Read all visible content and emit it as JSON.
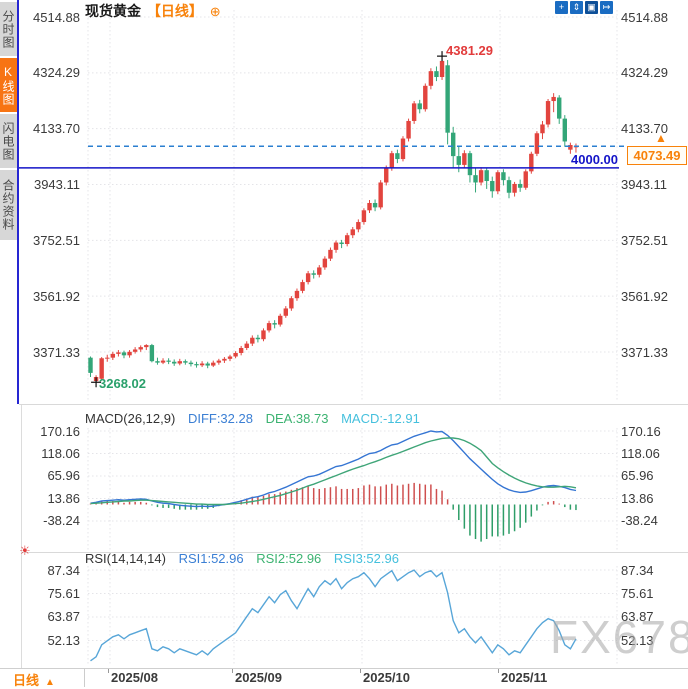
{
  "header": {
    "symbol": "现货黄金",
    "period_tag": "【日线】",
    "add_indicator_glyph": "⊕"
  },
  "sidebar": {
    "items": [
      {
        "label": "分时图",
        "active": false
      },
      {
        "label": "K线图",
        "active": true
      },
      {
        "label": "闪电图",
        "active": false
      },
      {
        "label": "合约资料",
        "active": false
      }
    ]
  },
  "toolbar": {
    "icons": [
      {
        "name": "crosshair-pan-icon",
        "glyph": "+",
        "active": false
      },
      {
        "name": "axis-zoom-icon",
        "glyph": "⇕",
        "active": false
      },
      {
        "name": "axis-fill-icon",
        "glyph": "▣",
        "active": true
      },
      {
        "name": "collapse-right-icon",
        "glyph": "↦",
        "active": false
      }
    ]
  },
  "main_chart": {
    "y_labels": [
      "4514.88",
      "4324.29",
      "4133.70",
      "3943.11",
      "3752.51",
      "3561.92",
      "3371.33"
    ],
    "high_label": "4381.29",
    "low_label": "3268.02",
    "hline_label": "4000.00",
    "last_price_label": "4073.49",
    "price_arrow_glyph": "▲"
  },
  "macd": {
    "title": "MACD(26,12,9)",
    "diff_label": "DIFF:32.28",
    "dea_label": "DEA:38.73",
    "macd_label": "MACD:-12.91",
    "y_labels": [
      "170.16",
      "118.06",
      "65.96",
      "13.86",
      "-38.24"
    ]
  },
  "rsi": {
    "title": "RSI(14,14,14)",
    "rsi1_label": "RSI1:52.96",
    "rsi2_label": "RSI2:52.96",
    "rsi3_label": "RSI3:52.96",
    "y_labels": [
      "87.34",
      "75.61",
      "63.87",
      "52.13"
    ],
    "alarm_glyph": "☀"
  },
  "bottom_bar": {
    "period": "日线",
    "period_arrow": "▲",
    "x_labels": [
      "2025/08",
      "2025/09",
      "2025/10",
      "2025/11"
    ]
  },
  "watermark": "FX678",
  "colors": {
    "up": "#e2443e",
    "down": "#33a678",
    "macd_diff": "#3575d3",
    "macd_dea": "#3fa578",
    "macd_hist_pos": "#cf4f4f",
    "macd_hist_neg": "#2e9e68",
    "rsi_line": "#58a6d8",
    "accent_orange": "#f8820a",
    "line_blue": "#1414c8",
    "dashed_blue": "#2b7fd0",
    "grid": "#e4e4e8",
    "axis_text": "#3a3a3a",
    "marker": "#111111"
  },
  "chart_data": [
    {
      "type": "candlestick",
      "title": "现货黄金 日线",
      "x_labels": [
        "2025/08",
        "2025/09",
        "2025/10",
        "2025/11"
      ],
      "y_ticks": [
        4514.88,
        4324.29,
        4133.7,
        3943.11,
        3752.51,
        3561.92,
        3371.33
      ],
      "ylim": [
        3268.02,
        4514.88
      ],
      "high_annotation": 4381.29,
      "high_index": 63,
      "low_annotation": 3268.02,
      "low_index": 1,
      "current_price": 4073.49,
      "horizontal_line": 4000.0,
      "candles": [
        [
          3352,
          3356,
          3286,
          3300
        ],
        [
          3272,
          3292,
          3268.02,
          3286
        ],
        [
          3280,
          3354,
          3276,
          3350
        ],
        [
          3350,
          3362,
          3338,
          3352
        ],
        [
          3352,
          3372,
          3344,
          3365
        ],
        [
          3365,
          3378,
          3356,
          3370
        ],
        [
          3370,
          3376,
          3350,
          3360
        ],
        [
          3360,
          3378,
          3352,
          3372
        ],
        [
          3372,
          3388,
          3366,
          3380
        ],
        [
          3380,
          3394,
          3372,
          3388
        ],
        [
          3388,
          3398,
          3378,
          3395
        ],
        [
          3395,
          3399,
          3336,
          3340
        ],
        [
          3340,
          3352,
          3328,
          3335
        ],
        [
          3335,
          3350,
          3330,
          3342
        ],
        [
          3342,
          3350,
          3330,
          3338
        ],
        [
          3338,
          3346,
          3324,
          3332
        ],
        [
          3332,
          3348,
          3326,
          3340
        ],
        [
          3340,
          3346,
          3328,
          3335
        ],
        [
          3335,
          3342,
          3322,
          3330
        ],
        [
          3330,
          3338,
          3318,
          3326
        ],
        [
          3326,
          3340,
          3320,
          3332
        ],
        [
          3332,
          3338,
          3316,
          3325
        ],
        [
          3325,
          3342,
          3320,
          3335
        ],
        [
          3335,
          3348,
          3328,
          3342
        ],
        [
          3342,
          3354,
          3334,
          3348
        ],
        [
          3348,
          3362,
          3340,
          3356
        ],
        [
          3356,
          3374,
          3350,
          3368
        ],
        [
          3368,
          3392,
          3360,
          3385
        ],
        [
          3385,
          3408,
          3378,
          3400
        ],
        [
          3400,
          3428,
          3392,
          3420
        ],
        [
          3420,
          3430,
          3404,
          3415
        ],
        [
          3415,
          3452,
          3408,
          3445
        ],
        [
          3445,
          3478,
          3438,
          3470
        ],
        [
          3470,
          3480,
          3452,
          3465
        ],
        [
          3465,
          3502,
          3458,
          3495
        ],
        [
          3495,
          3528,
          3488,
          3520
        ],
        [
          3520,
          3562,
          3512,
          3555
        ],
        [
          3555,
          3588,
          3546,
          3580
        ],
        [
          3580,
          3618,
          3572,
          3610
        ],
        [
          3610,
          3648,
          3602,
          3640
        ],
        [
          3640,
          3650,
          3622,
          3635
        ],
        [
          3635,
          3668,
          3626,
          3660
        ],
        [
          3660,
          3698,
          3652,
          3690
        ],
        [
          3690,
          3728,
          3682,
          3720
        ],
        [
          3720,
          3752,
          3710,
          3745
        ],
        [
          3745,
          3754,
          3726,
          3740
        ],
        [
          3740,
          3778,
          3732,
          3770
        ],
        [
          3770,
          3798,
          3760,
          3790
        ],
        [
          3790,
          3824,
          3780,
          3815
        ],
        [
          3815,
          3862,
          3806,
          3855
        ],
        [
          3855,
          3890,
          3846,
          3880
        ],
        [
          3880,
          3892,
          3852,
          3865
        ],
        [
          3865,
          3958,
          3858,
          3950
        ],
        [
          3950,
          4008,
          3940,
          4000
        ],
        [
          4000,
          4058,
          3990,
          4050
        ],
        [
          4050,
          4062,
          4016,
          4030
        ],
        [
          4030,
          4108,
          4022,
          4100
        ],
        [
          4100,
          4168,
          4090,
          4160
        ],
        [
          4160,
          4228,
          4150,
          4220
        ],
        [
          4220,
          4232,
          4186,
          4200
        ],
        [
          4200,
          4288,
          4192,
          4280
        ],
        [
          4280,
          4340,
          4268,
          4330
        ],
        [
          4330,
          4346,
          4296,
          4310
        ],
        [
          4310,
          4381.29,
          4300,
          4365
        ],
        [
          4350,
          4368,
          4080,
          4120
        ],
        [
          4120,
          4140,
          4000,
          4040
        ],
        [
          4040,
          4075,
          3985,
          4010
        ],
        [
          4010,
          4060,
          3998,
          4050
        ],
        [
          4050,
          4058,
          3950,
          3975
        ],
        [
          3975,
          4000,
          3916,
          3950
        ],
        [
          3950,
          4002,
          3940,
          3992
        ],
        [
          3992,
          4000,
          3928,
          3955
        ],
        [
          3955,
          3970,
          3898,
          3920
        ],
        [
          3920,
          3992,
          3910,
          3985
        ],
        [
          3985,
          3995,
          3940,
          3958
        ],
        [
          3958,
          3970,
          3896,
          3915
        ],
        [
          3915,
          3952,
          3902,
          3945
        ],
        [
          3945,
          3960,
          3918,
          3932
        ],
        [
          3932,
          3995,
          3925,
          3988
        ],
        [
          3988,
          4055,
          3980,
          4048
        ],
        [
          4048,
          4125,
          4040,
          4118
        ],
        [
          4118,
          4160,
          4098,
          4148
        ],
        [
          4148,
          4235,
          4138,
          4228
        ],
        [
          4228,
          4255,
          4190,
          4242
        ],
        [
          4240,
          4248,
          4150,
          4168
        ],
        [
          4168,
          4180,
          4072,
          4090
        ],
        [
          4062,
          4086,
          4048,
          4078
        ],
        [
          4070,
          4083,
          4052,
          4073.49
        ]
      ]
    },
    {
      "type": "line",
      "title": "MACD(26,12,9)",
      "y_ticks": [
        170.16,
        118.06,
        65.96,
        13.86,
        -38.24
      ],
      "histogram_rule": "2*(DIFF-DEA)",
      "series": [
        {
          "name": "DIFF",
          "values": [
            3,
            5,
            8,
            9,
            10,
            11,
            10,
            11,
            12,
            13,
            12,
            8,
            5,
            3,
            2,
            0,
            -2,
            -3,
            -4,
            -5,
            -4,
            -5,
            -4,
            -2,
            0,
            2,
            5,
            8,
            12,
            16,
            18,
            22,
            27,
            30,
            35,
            40,
            46,
            52,
            58,
            64,
            66,
            70,
            76,
            82,
            88,
            90,
            95,
            100,
            105,
            112,
            118,
            120,
            125,
            132,
            138,
            140,
            146,
            152,
            158,
            162,
            166,
            170.16,
            168,
            169,
            160,
            148,
            134,
            120,
            106,
            94,
            82,
            70,
            58,
            48,
            40,
            34,
            30,
            28,
            29,
            32,
            36,
            40,
            43,
            44,
            42,
            39,
            35,
            32.28
          ]
        },
        {
          "name": "DEA",
          "values": [
            2,
            3,
            4,
            5,
            6,
            7,
            8,
            8,
            9,
            10,
            10,
            9,
            8,
            7,
            6,
            5,
            4,
            3,
            2,
            1,
            1,
            0,
            0,
            0,
            0,
            1,
            2,
            3,
            5,
            7,
            9,
            12,
            15,
            18,
            21,
            25,
            29,
            33,
            38,
            43,
            47,
            52,
            57,
            62,
            67,
            72,
            77,
            82,
            86,
            90,
            95,
            99,
            104,
            109,
            114,
            118,
            123,
            128,
            133,
            138,
            143,
            147,
            150,
            153,
            154,
            154,
            152,
            148,
            142,
            134,
            125,
            110,
            95,
            85,
            76,
            68,
            61,
            55,
            50,
            46,
            43,
            41,
            40,
            40,
            41,
            42,
            41,
            38.73
          ]
        }
      ]
    },
    {
      "type": "line",
      "title": "RSI(14,14,14)",
      "y_ticks": [
        87.34,
        75.61,
        63.87,
        52.13
      ],
      "series": [
        {
          "name": "RSI1",
          "values": [
            42,
            44,
            50,
            52,
            54,
            55,
            53,
            55,
            56,
            57,
            58,
            48,
            47,
            49,
            48,
            46,
            48,
            47,
            46,
            45,
            47,
            45,
            48,
            50,
            52,
            54,
            56,
            60,
            64,
            68,
            66,
            70,
            74,
            71,
            75,
            77,
            72,
            68,
            73,
            78,
            74,
            79,
            82,
            80,
            83,
            78,
            81,
            83,
            84,
            86,
            83,
            79,
            83,
            85,
            87,
            82,
            84,
            86,
            87.3,
            84,
            86,
            87,
            84,
            86,
            76,
            62,
            56,
            58,
            54,
            51,
            54,
            50,
            46,
            50,
            48,
            45,
            47,
            46,
            50,
            54,
            58,
            61,
            63,
            62,
            57,
            50,
            48,
            52.96
          ]
        },
        {
          "name": "RSI2",
          "values": "same as RSI1 (lines overlap)"
        },
        {
          "name": "RSI3",
          "values": "same as RSI1 (lines overlap)"
        }
      ]
    }
  ]
}
